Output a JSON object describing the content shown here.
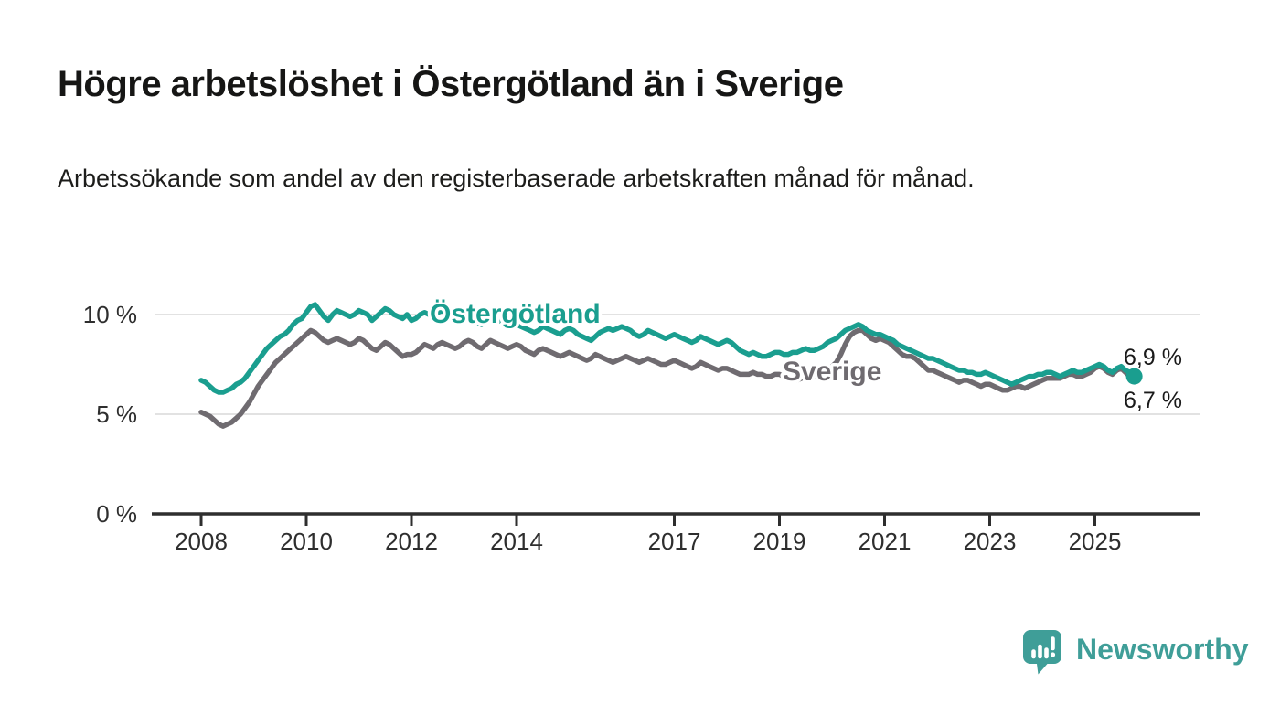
{
  "header": {
    "title": "Högre arbetslöshet i Östergötland än i Sverige",
    "subtitle": "Arbetssökande som andel av den registerbaserade arbetskraften månad för månad."
  },
  "chart_data": {
    "type": "line",
    "x_start": "2008-01",
    "x_end": "2025-10",
    "x_resolution": "monthly",
    "x_tick_years": [
      2008,
      2010,
      2012,
      2014,
      2017,
      2019,
      2021,
      2023,
      2025
    ],
    "y_ticks": [
      {
        "value": 0,
        "label": "0 %"
      },
      {
        "value": 5,
        "label": "5 %"
      },
      {
        "value": 10,
        "label": "10 %"
      }
    ],
    "ylim": [
      0,
      12
    ],
    "grid": "horizontal",
    "unit": "%",
    "series": [
      {
        "name": "Sverige",
        "color": "#6f6b70",
        "end_label": "6,7 %",
        "end_value": 6.7,
        "values": [
          5.1,
          5.0,
          4.9,
          4.7,
          4.5,
          4.4,
          4.5,
          4.6,
          4.8,
          5.0,
          5.3,
          5.6,
          6.0,
          6.4,
          6.7,
          7.0,
          7.3,
          7.6,
          7.8,
          8.0,
          8.2,
          8.4,
          8.6,
          8.8,
          9.0,
          9.2,
          9.1,
          8.9,
          8.7,
          8.6,
          8.7,
          8.8,
          8.7,
          8.6,
          8.5,
          8.6,
          8.8,
          8.7,
          8.5,
          8.3,
          8.2,
          8.4,
          8.6,
          8.5,
          8.3,
          8.1,
          7.9,
          8.0,
          8.0,
          8.1,
          8.3,
          8.5,
          8.4,
          8.3,
          8.5,
          8.6,
          8.5,
          8.4,
          8.3,
          8.4,
          8.6,
          8.7,
          8.6,
          8.4,
          8.3,
          8.5,
          8.7,
          8.6,
          8.5,
          8.4,
          8.3,
          8.4,
          8.5,
          8.4,
          8.2,
          8.1,
          8.0,
          8.2,
          8.3,
          8.2,
          8.1,
          8.0,
          7.9,
          8.0,
          8.1,
          8.0,
          7.9,
          7.8,
          7.7,
          7.8,
          8.0,
          7.9,
          7.8,
          7.7,
          7.6,
          7.7,
          7.8,
          7.9,
          7.8,
          7.7,
          7.6,
          7.7,
          7.8,
          7.7,
          7.6,
          7.5,
          7.5,
          7.6,
          7.7,
          7.6,
          7.5,
          7.4,
          7.3,
          7.4,
          7.6,
          7.5,
          7.4,
          7.3,
          7.2,
          7.3,
          7.3,
          7.2,
          7.1,
          7.0,
          7.0,
          7.0,
          7.1,
          7.0,
          7.0,
          6.9,
          6.9,
          7.0,
          7.0,
          6.9,
          6.8,
          6.7,
          6.7,
          6.8,
          7.0,
          7.0,
          6.9,
          6.9,
          7.0,
          7.1,
          7.4,
          7.6,
          8.0,
          8.5,
          8.9,
          9.1,
          9.2,
          9.2,
          9.0,
          8.8,
          8.7,
          8.8,
          8.7,
          8.6,
          8.4,
          8.2,
          8.0,
          7.9,
          7.9,
          7.8,
          7.6,
          7.4,
          7.2,
          7.2,
          7.1,
          7.0,
          6.9,
          6.8,
          6.7,
          6.6,
          6.7,
          6.7,
          6.6,
          6.5,
          6.4,
          6.5,
          6.5,
          6.4,
          6.3,
          6.2,
          6.2,
          6.3,
          6.4,
          6.4,
          6.3,
          6.4,
          6.5,
          6.6,
          6.7,
          6.8,
          6.8,
          6.8,
          6.8,
          6.9,
          7.0,
          7.0,
          6.9,
          6.9,
          7.0,
          7.1,
          7.3,
          7.4,
          7.3,
          7.1,
          7.0,
          7.2,
          7.3,
          7.1,
          6.9,
          6.7
        ]
      },
      {
        "name": "Östergötland",
        "color": "#1a9e8f",
        "end_label": "6,9 %",
        "end_value": 6.9,
        "values": [
          6.7,
          6.6,
          6.4,
          6.2,
          6.1,
          6.1,
          6.2,
          6.3,
          6.5,
          6.6,
          6.8,
          7.1,
          7.4,
          7.7,
          8.0,
          8.3,
          8.5,
          8.7,
          8.9,
          9.0,
          9.2,
          9.5,
          9.7,
          9.8,
          10.1,
          10.4,
          10.5,
          10.2,
          9.9,
          9.7,
          10.0,
          10.2,
          10.1,
          10.0,
          9.9,
          10.0,
          10.2,
          10.1,
          10.0,
          9.7,
          9.9,
          10.1,
          10.3,
          10.2,
          10.0,
          9.9,
          9.8,
          10.0,
          9.7,
          9.8,
          10.0,
          10.1,
          10.0,
          9.9,
          10.1,
          10.2,
          10.1,
          10.0,
          9.9,
          10.0,
          10.0,
          9.9,
          9.8,
          9.6,
          9.5,
          9.7,
          9.9,
          9.8,
          9.7,
          9.6,
          9.5,
          9.6,
          9.5,
          9.4,
          9.3,
          9.2,
          9.1,
          9.2,
          9.4,
          9.3,
          9.2,
          9.1,
          9.0,
          9.2,
          9.3,
          9.2,
          9.0,
          8.9,
          8.8,
          8.7,
          8.9,
          9.1,
          9.2,
          9.3,
          9.2,
          9.3,
          9.4,
          9.3,
          9.2,
          9.0,
          8.9,
          9.0,
          9.2,
          9.1,
          9.0,
          8.9,
          8.8,
          8.9,
          9.0,
          8.9,
          8.8,
          8.7,
          8.6,
          8.7,
          8.9,
          8.8,
          8.7,
          8.6,
          8.5,
          8.6,
          8.7,
          8.6,
          8.4,
          8.2,
          8.1,
          8.0,
          8.1,
          8.0,
          7.9,
          7.9,
          8.0,
          8.1,
          8.1,
          8.0,
          8.0,
          8.1,
          8.1,
          8.2,
          8.3,
          8.2,
          8.2,
          8.3,
          8.4,
          8.6,
          8.7,
          8.8,
          9.0,
          9.2,
          9.3,
          9.4,
          9.5,
          9.4,
          9.2,
          9.1,
          9.0,
          9.0,
          8.9,
          8.8,
          8.7,
          8.5,
          8.4,
          8.3,
          8.2,
          8.1,
          8.0,
          7.9,
          7.8,
          7.8,
          7.7,
          7.6,
          7.5,
          7.4,
          7.3,
          7.2,
          7.2,
          7.1,
          7.1,
          7.0,
          7.0,
          7.1,
          7.0,
          6.9,
          6.8,
          6.7,
          6.6,
          6.5,
          6.6,
          6.7,
          6.8,
          6.9,
          6.9,
          7.0,
          7.0,
          7.1,
          7.1,
          7.0,
          6.9,
          7.0,
          7.1,
          7.2,
          7.1,
          7.1,
          7.2,
          7.3,
          7.4,
          7.5,
          7.4,
          7.2,
          7.1,
          7.3,
          7.4,
          7.2,
          7.1,
          6.9
        ]
      }
    ],
    "series_draw_order": [
      "Sverige",
      "Östergötland"
    ],
    "title": "Högre arbetslöshet i Östergötland än i Sverige",
    "xlabel": "",
    "ylabel": "",
    "legend_position": "inline-labels"
  },
  "colors": {
    "ostergotland": "#1a9e8f",
    "sverige": "#6f6b70",
    "grid": "#d9d9d9",
    "axis": "#2e2e2e",
    "logo": "#3f9e98"
  },
  "footer": {
    "brand": "Newsworthy"
  }
}
